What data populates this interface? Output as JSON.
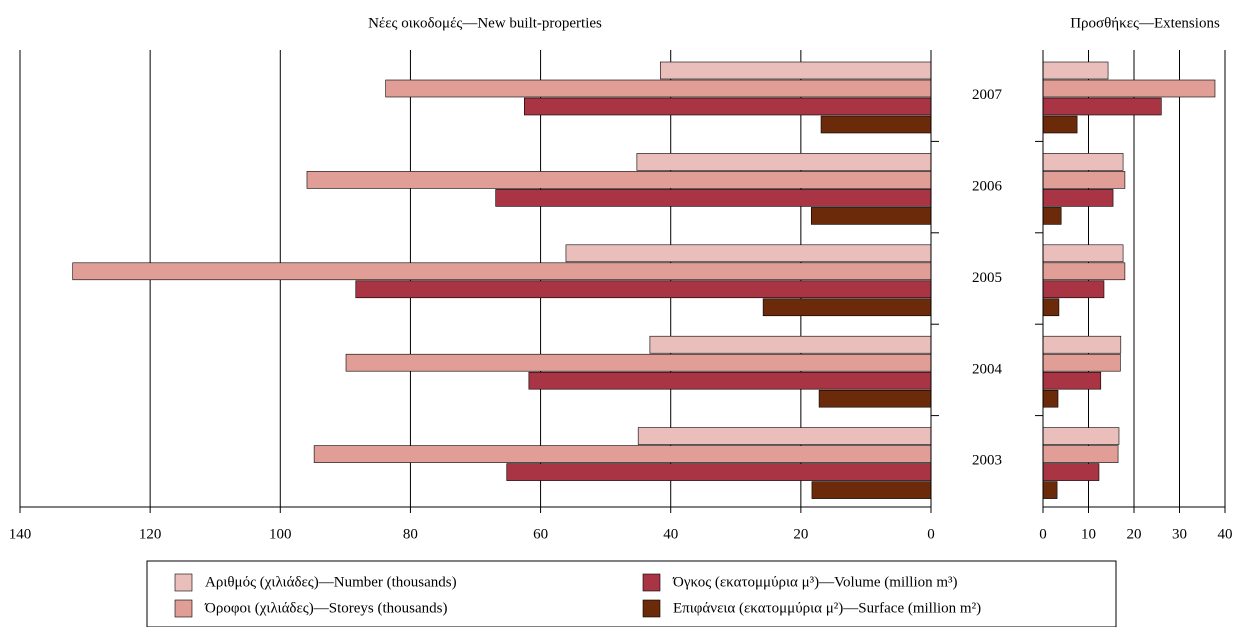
{
  "chart_data": [
    {
      "type": "bar",
      "orientation": "horizontal",
      "title": "Νέες οικοδομές—New built-properties",
      "categories": [
        "2007",
        "2006",
        "2005",
        "2004",
        "2003"
      ],
      "series": [
        {
          "name": "Αριθμός (χιλιάδες)—Number (thousands)",
          "color": "#eabfbb",
          "values": [
            41.6,
            45.2,
            56.1,
            43.2,
            45
          ]
        },
        {
          "name": "Όροφοι (χιλιάδες)—Storeys (thousands)",
          "color": "#e09e96",
          "values": [
            83.8,
            95.9,
            131.9,
            89.9,
            94.8
          ]
        },
        {
          "name": "Όγκος (εκατομμύρια μ³)—Volume (million m³)",
          "color": "#a83444",
          "values": [
            62.5,
            66.9,
            88.4,
            61.8,
            65.2
          ]
        },
        {
          "name": "Επιφάνεια (εκατομμύρια μ²)—Surface (million m²)",
          "color": "#6b2a0a",
          "values": [
            16.9,
            18.4,
            25.8,
            17.2,
            18.3
          ]
        }
      ],
      "xlim": [
        140,
        0
      ],
      "xticks": [
        140,
        120,
        100,
        80,
        60,
        40,
        20,
        0
      ],
      "grid": true
    },
    {
      "type": "bar",
      "orientation": "horizontal",
      "title": "Προσθήκες—Extensions",
      "series": [
        {
          "color": "#eabfbb",
          "values": [
            14.3,
            17.6,
            17.6,
            17.1,
            16.7
          ]
        },
        {
          "color": "#e09e96",
          "values": [
            37.8,
            18,
            18,
            17,
            16.5
          ]
        },
        {
          "color": "#a83444",
          "values": [
            26,
            15.4,
            13.4,
            12.7,
            12.3
          ]
        },
        {
          "color": "#6b2a0a",
          "values": [
            7.5,
            4,
            3.5,
            3.3,
            3.1
          ]
        }
      ],
      "xlim": [
        0,
        40
      ],
      "xticks": [
        0,
        10,
        20,
        30,
        40
      ],
      "grid": true
    }
  ]
}
